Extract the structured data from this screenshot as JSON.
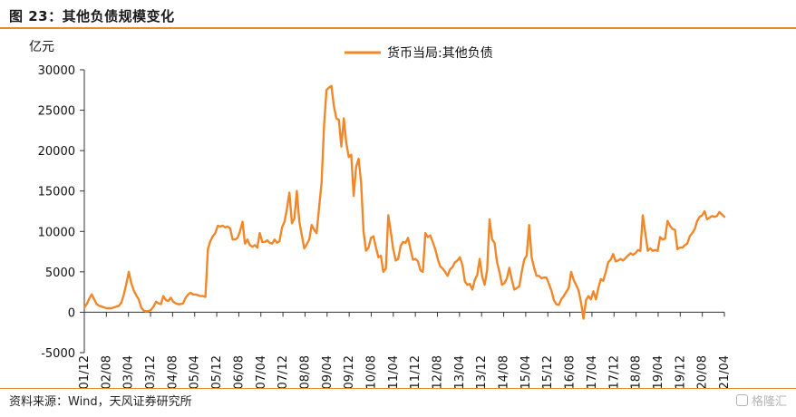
{
  "figure": {
    "title": "图 23：其他负债规模变化",
    "source": "资料来源：Wind，天风证券研究所",
    "watermark": "格隆汇"
  },
  "colors": {
    "accent": "#e8892b",
    "series": "#f0882a",
    "axis": "#333333"
  },
  "chart_data": {
    "type": "line",
    "ylabel": "亿元",
    "ylim": [
      -5000,
      30000
    ],
    "yticks": [
      -5000,
      0,
      5000,
      10000,
      15000,
      20000,
      25000,
      30000
    ],
    "ytick_labels": [
      "-5000",
      "0",
      "5000",
      "10000",
      "15000",
      "20000",
      "25000",
      "30000"
    ],
    "xtick_labels": [
      "2001/12",
      "2002/08",
      "2003/04",
      "2003/12",
      "2004/08",
      "2005/04",
      "2005/12",
      "2006/08",
      "2007/04",
      "2007/12",
      "2008/08",
      "2009/04",
      "2009/12",
      "2010/08",
      "2011/04",
      "2011/12",
      "2012/08",
      "2013/04",
      "2013/12",
      "2014/08",
      "2015/04",
      "2015/12",
      "2016/08",
      "2017/04",
      "2017/12",
      "2018/08",
      "2019/04",
      "2019/12",
      "2020/08",
      "2021/04"
    ],
    "x_start": "2001/12",
    "grid": false,
    "legend": {
      "position": "top-center"
    },
    "series": [
      {
        "name": "货币当局:其他负债",
        "color": "#f0882a",
        "values": [
          600,
          1000,
          1700,
          2200,
          1600,
          1000,
          800,
          700,
          600,
          500,
          500,
          500,
          600,
          700,
          800,
          1200,
          2200,
          3500,
          5000,
          3600,
          2700,
          2100,
          1600,
          600,
          200,
          100,
          150,
          300,
          700,
          1300,
          1100,
          1000,
          2000,
          1500,
          1400,
          1800,
          1300,
          1100,
          1000,
          1000,
          1100,
          1800,
          2200,
          2400,
          2200,
          2200,
          2100,
          2000,
          2000,
          1900,
          7800,
          8800,
          9400,
          9800,
          10700,
          10600,
          10700,
          10500,
          10600,
          10400,
          9000,
          9000,
          9200,
          10000,
          11200,
          8500,
          9000,
          8300,
          8100,
          8300,
          8000,
          9800,
          8700,
          8700,
          8900,
          8600,
          8500,
          9000,
          8600,
          8800,
          10500,
          11200,
          12800,
          14800,
          11000,
          11600,
          15000,
          11200,
          9500,
          7900,
          8400,
          9000,
          10800,
          10200,
          9800,
          13000,
          16000,
          23000,
          27500,
          27800,
          28000,
          25500,
          24000,
          23800,
          20500,
          24000,
          21000,
          19200,
          19500,
          14400,
          18000,
          19000,
          16000,
          10000,
          7600,
          8000,
          9200,
          9400,
          8000,
          6800,
          7000,
          5000,
          5400,
          12000,
          10000,
          7800,
          6400,
          6600,
          8200,
          8700,
          8600,
          9200,
          7800,
          6500,
          6600,
          6300,
          5200,
          5000,
          9800,
          9300,
          9500,
          8700,
          7800,
          6600,
          5700,
          5400,
          5000,
          4500,
          5300,
          5600,
          6200,
          6400,
          6800,
          5800,
          3800,
          3400,
          3500,
          2800,
          4000,
          4600,
          6600,
          4400,
          3400,
          5200,
          11500,
          9000,
          8600,
          6200,
          5000,
          3400,
          3600,
          4200,
          5500,
          4000,
          2800,
          3000,
          3200,
          5000,
          6500,
          7000,
          10800,
          6800,
          5500,
          4500,
          4500,
          4200,
          4300,
          4300,
          3500,
          2700,
          1500,
          1000,
          900,
          1600,
          2000,
          2500,
          3000,
          5000,
          4000,
          3400,
          2700,
          1200,
          -800,
          1500,
          2000,
          1600,
          2600,
          1600,
          3000,
          4100,
          3900,
          5000,
          6200,
          6500,
          7200,
          6300,
          6400,
          6600,
          6400,
          6700,
          7000,
          7300,
          7100,
          7300,
          7700,
          7600,
          12000,
          9800,
          7600,
          7900,
          7600,
          7700,
          7600,
          9300,
          9000,
          9100,
          11300,
          10700,
          10300,
          10200,
          7800,
          8000,
          8000,
          8300,
          8500,
          9400,
          9800,
          10300,
          11300,
          11800,
          12000,
          12500,
          11500,
          11700,
          11900,
          11800,
          11900,
          12400,
          12100,
          11800
        ]
      }
    ]
  }
}
